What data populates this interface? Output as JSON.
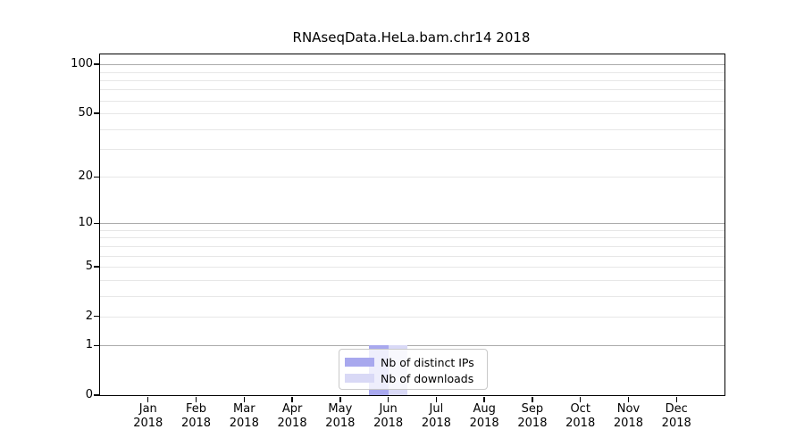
{
  "figure": {
    "title": "RNAseqData.HeLa.bam.chr14 2018"
  },
  "chart_data": {
    "type": "bar",
    "title": "RNAseqData.HeLa.bam.chr14 2018",
    "categories": [
      "Jan 2018",
      "Feb 2018",
      "Mar 2018",
      "Apr 2018",
      "May 2018",
      "Jun 2018",
      "Jul 2018",
      "Aug 2018",
      "Sep 2018",
      "Oct 2018",
      "Nov 2018",
      "Dec 2018"
    ],
    "series": [
      {
        "name": "Nb of distinct IPs",
        "color": "#a8a8ee",
        "values": [
          0,
          0,
          0,
          0,
          0,
          1,
          0,
          0,
          0,
          0,
          0,
          0
        ]
      },
      {
        "name": "Nb of downloads",
        "color": "#d9d9f6",
        "values": [
          0,
          0,
          0,
          0,
          0,
          1,
          0,
          0,
          0,
          0,
          0,
          0
        ]
      }
    ],
    "xlabel": "",
    "ylabel": "",
    "yscale": "log1p",
    "ylim": [
      0,
      115
    ],
    "y_tick_labels": [
      0,
      1,
      2,
      5,
      10,
      20,
      50,
      100
    ],
    "major_gridlines": [
      1,
      10,
      100
    ],
    "minor_gridlines": [
      2,
      3,
      4,
      5,
      6,
      7,
      8,
      9,
      20,
      30,
      40,
      50,
      60,
      70,
      80,
      90
    ],
    "grid": true,
    "legend_position": "lower center"
  },
  "colors": {
    "major_grid": "#ababab",
    "minor_grid": "#e7e7e7",
    "spine": "#000000",
    "bar_distinct_ips": "#a8a8ee",
    "bar_downloads": "#d9d9f6"
  }
}
